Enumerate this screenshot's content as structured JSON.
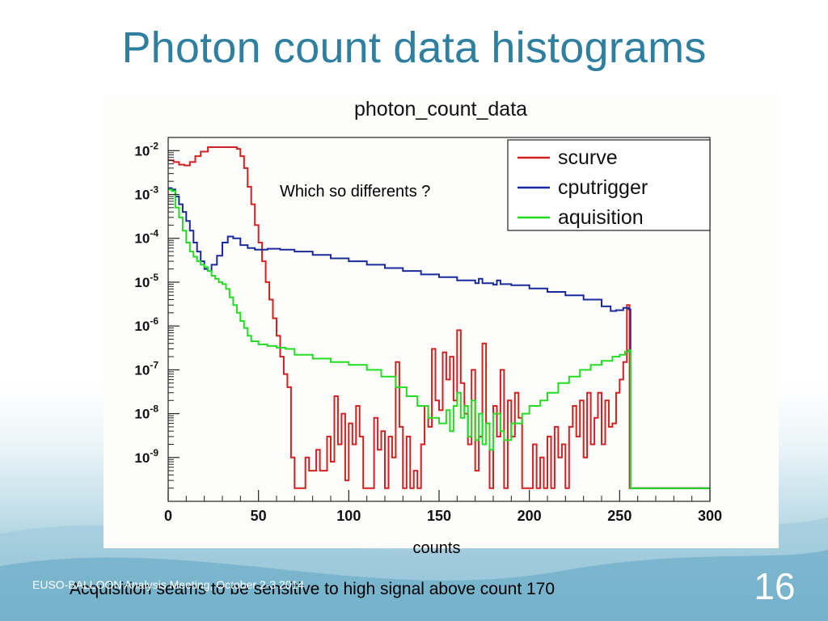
{
  "slide": {
    "title": "Photon count data histograms",
    "footer": "EUSO-BALLOON Analysis Meeting, October 2-3 2014",
    "caption": "Acquisition seams to be sensitive to high signal above count 170",
    "number": "16",
    "accent_color": "#2f7fa0"
  },
  "chart_data": {
    "type": "line",
    "title": "photon_count_data",
    "xlabel": "counts",
    "ylabel": "",
    "annotation": "Which so differents ?",
    "xlim": [
      0,
      300
    ],
    "ylim": [
      1e-10,
      0.02
    ],
    "y_scale": "log",
    "x_ticks": [
      "0",
      "50",
      "100",
      "150",
      "200",
      "250",
      "300"
    ],
    "y_ticks": [
      {
        "mantissa": "10",
        "exp": "-2",
        "value": 0.01
      },
      {
        "mantissa": "10",
        "exp": "-3",
        "value": 0.001
      },
      {
        "mantissa": "10",
        "exp": "-4",
        "value": 0.0001
      },
      {
        "mantissa": "10",
        "exp": "-5",
        "value": 1e-05
      },
      {
        "mantissa": "10",
        "exp": "-6",
        "value": 1e-06
      },
      {
        "mantissa": "10",
        "exp": "-7",
        "value": 1e-07
      },
      {
        "mantissa": "10",
        "exp": "-8",
        "value": 1e-08
      },
      {
        "mantissa": "10",
        "exp": "-9",
        "value": 1e-09
      }
    ],
    "legend_position": "top-right",
    "series": [
      {
        "name": "scurve",
        "color": "#d42020",
        "points": [
          [
            0,
            0.006
          ],
          [
            3,
            0.0055
          ],
          [
            6,
            0.0048
          ],
          [
            9,
            0.0046
          ],
          [
            12,
            0.0055
          ],
          [
            15,
            0.0075
          ],
          [
            18,
            0.0095
          ],
          [
            22,
            0.012
          ],
          [
            26,
            0.012
          ],
          [
            30,
            0.012
          ],
          [
            34,
            0.012
          ],
          [
            38,
            0.011
          ],
          [
            40,
            0.0075
          ],
          [
            42,
            0.004
          ],
          [
            44,
            0.0015
          ],
          [
            46,
            0.0006
          ],
          [
            48,
            0.0002
          ],
          [
            50,
            8e-05
          ],
          [
            52,
            3e-05
          ],
          [
            54,
            1e-05
          ],
          [
            56,
            4e-06
          ],
          [
            58,
            1.5e-06
          ],
          [
            60,
            6e-07
          ],
          [
            62,
            2e-07
          ],
          [
            64,
            8e-08
          ],
          [
            66,
            4e-08
          ],
          [
            68,
            1e-09
          ],
          [
            70,
            2e-10
          ],
          [
            74,
            2e-10
          ],
          [
            76,
            1e-09
          ],
          [
            78,
            5e-10
          ],
          [
            82,
            1.5e-09
          ],
          [
            84,
            5e-10
          ],
          [
            88,
            3e-09
          ],
          [
            90,
            8e-10
          ],
          [
            92,
            2.5e-08
          ],
          [
            94,
            2e-09
          ],
          [
            96,
            1e-08
          ],
          [
            98,
            3e-10
          ],
          [
            100,
            6e-09
          ],
          [
            102,
            2e-09
          ],
          [
            104,
            1.5e-08
          ],
          [
            106,
            3e-09
          ],
          [
            108,
            2e-10
          ],
          [
            112,
            2e-10
          ],
          [
            114,
            8e-09
          ],
          [
            116,
            1.5e-09
          ],
          [
            118,
            4e-09
          ],
          [
            120,
            2e-10
          ],
          [
            122,
            3e-09
          ],
          [
            124,
            1e-09
          ],
          [
            126,
            1.5e-07
          ],
          [
            128,
            5e-09
          ],
          [
            130,
            2e-10
          ],
          [
            132,
            3e-09
          ],
          [
            134,
            2e-10
          ],
          [
            136,
            5e-10
          ],
          [
            138,
            2e-10
          ],
          [
            140,
            2e-09
          ],
          [
            142,
            1.5e-08
          ],
          [
            144,
            5e-09
          ],
          [
            146,
            3e-07
          ],
          [
            148,
            2e-08
          ],
          [
            150,
            1.2e-08
          ],
          [
            152,
            2.5e-07
          ],
          [
            154,
            6e-08
          ],
          [
            156,
            2e-07
          ],
          [
            158,
            2e-08
          ],
          [
            160,
            8e-07
          ],
          [
            162,
            5e-08
          ],
          [
            164,
            1e-08
          ],
          [
            166,
            2e-09
          ],
          [
            168,
            1e-07
          ],
          [
            170,
            5e-10
          ],
          [
            172,
            3e-09
          ],
          [
            174,
            4e-07
          ],
          [
            176,
            6e-09
          ],
          [
            178,
            2e-10
          ],
          [
            180,
            1.5e-08
          ],
          [
            182,
            3e-09
          ],
          [
            184,
            1e-07
          ],
          [
            186,
            2e-10
          ],
          [
            188,
            2e-08
          ],
          [
            190,
            3e-09
          ],
          [
            192,
            3e-08
          ],
          [
            194,
            8e-09
          ],
          [
            196,
            2e-10
          ],
          [
            200,
            2e-10
          ],
          [
            202,
            2e-09
          ],
          [
            204,
            2e-10
          ],
          [
            206,
            1e-09
          ],
          [
            208,
            2e-10
          ],
          [
            210,
            3e-09
          ],
          [
            212,
            2e-10
          ],
          [
            214,
            5e-09
          ],
          [
            216,
            1e-09
          ],
          [
            218,
            2e-09
          ],
          [
            220,
            2e-10
          ],
          [
            222,
            5e-09
          ],
          [
            224,
            1.5e-08
          ],
          [
            226,
            3e-09
          ],
          [
            228,
            2e-08
          ],
          [
            230,
            1e-09
          ],
          [
            232,
            3e-08
          ],
          [
            234,
            2e-09
          ],
          [
            236,
            8e-09
          ],
          [
            238,
            3e-08
          ],
          [
            240,
            2e-09
          ],
          [
            242,
            2e-08
          ],
          [
            244,
            5e-09
          ],
          [
            246,
            6e-09
          ],
          [
            248,
            3e-08
          ],
          [
            250,
            6e-08
          ],
          [
            252,
            1.5e-07
          ],
          [
            254,
            3e-06
          ],
          [
            255,
            3e-06
          ],
          [
            255.5,
            2e-10
          ]
        ]
      },
      {
        "name": "cputrigger",
        "color": "#1a2a9c",
        "points": [
          [
            0,
            0.0014
          ],
          [
            2,
            0.0013
          ],
          [
            4,
            0.0009
          ],
          [
            6,
            0.0006
          ],
          [
            8,
            0.0004
          ],
          [
            10,
            0.00025
          ],
          [
            12,
            0.00015
          ],
          [
            14,
            8e-05
          ],
          [
            16,
            5e-05
          ],
          [
            18,
            3e-05
          ],
          [
            20,
            2e-05
          ],
          [
            22,
            1.8e-05
          ],
          [
            24,
            2.5e-05
          ],
          [
            27,
            4e-05
          ],
          [
            30,
            8e-05
          ],
          [
            33,
            0.00011
          ],
          [
            36,
            0.0001
          ],
          [
            40,
            7e-05
          ],
          [
            44,
            6e-05
          ],
          [
            48,
            5.5e-05
          ],
          [
            55,
            5.8e-05
          ],
          [
            62,
            5.5e-05
          ],
          [
            70,
            5e-05
          ],
          [
            80,
            4.2e-05
          ],
          [
            90,
            3.5e-05
          ],
          [
            100,
            3e-05
          ],
          [
            110,
            2.5e-05
          ],
          [
            120,
            2.1e-05
          ],
          [
            130,
            1.8e-05
          ],
          [
            140,
            1.5e-05
          ],
          [
            150,
            1.3e-05
          ],
          [
            160,
            1.1e-05
          ],
          [
            170,
            9.5e-06
          ],
          [
            172,
            1.2e-05
          ],
          [
            174,
            9.5e-06
          ],
          [
            180,
            8.8e-06
          ],
          [
            182,
            1.1e-05
          ],
          [
            184,
            9e-06
          ],
          [
            190,
            8.5e-06
          ],
          [
            200,
            7.2e-06
          ],
          [
            210,
            6e-06
          ],
          [
            220,
            5e-06
          ],
          [
            230,
            4e-06
          ],
          [
            240,
            2.8e-06
          ],
          [
            245,
            2.2e-06
          ],
          [
            248,
            2.3e-06
          ],
          [
            252,
            2.6e-06
          ],
          [
            255,
            2.4e-06
          ],
          [
            256,
            2e-10
          ]
        ]
      },
      {
        "name": "aquisition",
        "color": "#22dd22",
        "points": [
          [
            0,
            0.0013
          ],
          [
            2,
            0.0012
          ],
          [
            4,
            0.0005
          ],
          [
            6,
            0.0003
          ],
          [
            8,
            0.00015
          ],
          [
            10,
            8e-05
          ],
          [
            12,
            5e-05
          ],
          [
            14,
            3.8e-05
          ],
          [
            16,
            3e-05
          ],
          [
            18,
            2.5e-05
          ],
          [
            20,
            2.2e-05
          ],
          [
            22,
            1.8e-05
          ],
          [
            24,
            1.4e-05
          ],
          [
            26,
            1.2e-05
          ],
          [
            28,
            1e-05
          ],
          [
            30,
            9e-06
          ],
          [
            32,
            7e-06
          ],
          [
            34,
            4.5e-06
          ],
          [
            36,
            3e-06
          ],
          [
            38,
            2e-06
          ],
          [
            40,
            1.3e-06
          ],
          [
            42,
            9e-07
          ],
          [
            44,
            6e-07
          ],
          [
            46,
            4.5e-07
          ],
          [
            50,
            3.8e-07
          ],
          [
            55,
            3.5e-07
          ],
          [
            60,
            3.2e-07
          ],
          [
            65,
            3e-07
          ],
          [
            70,
            2.2e-07
          ],
          [
            80,
            1.8e-07
          ],
          [
            90,
            1.5e-07
          ],
          [
            100,
            1.3e-07
          ],
          [
            110,
            1e-07
          ],
          [
            118,
            7e-08
          ],
          [
            126,
            4e-08
          ],
          [
            132,
            2.5e-08
          ],
          [
            138,
            1.5e-08
          ],
          [
            144,
            8e-09
          ],
          [
            150,
            6e-09
          ],
          [
            154,
            1.2e-08
          ],
          [
            156,
            4e-09
          ],
          [
            158,
            1.5e-08
          ],
          [
            160,
            3e-08
          ],
          [
            162,
            8e-09
          ],
          [
            164,
            1.5e-08
          ],
          [
            166,
            3e-09
          ],
          [
            168,
            2e-08
          ],
          [
            170,
            2.5e-09
          ],
          [
            172,
            1e-08
          ],
          [
            174,
            2e-09
          ],
          [
            176,
            6e-09
          ],
          [
            178,
            1.5e-09
          ],
          [
            180,
            1e-08
          ],
          [
            184,
            4e-09
          ],
          [
            186,
            2.5e-09
          ],
          [
            190,
            6e-09
          ],
          [
            196,
            1e-08
          ],
          [
            200,
            1.5e-08
          ],
          [
            206,
            2e-08
          ],
          [
            210,
            3e-08
          ],
          [
            216,
            5e-08
          ],
          [
            222,
            7e-08
          ],
          [
            228,
            1e-07
          ],
          [
            234,
            1.3e-07
          ],
          [
            240,
            1.6e-07
          ],
          [
            246,
            2e-07
          ],
          [
            250,
            2.2e-07
          ],
          [
            253,
            2.6e-07
          ],
          [
            255,
            2.8e-07
          ],
          [
            256,
            2e-10
          ]
        ]
      }
    ]
  }
}
